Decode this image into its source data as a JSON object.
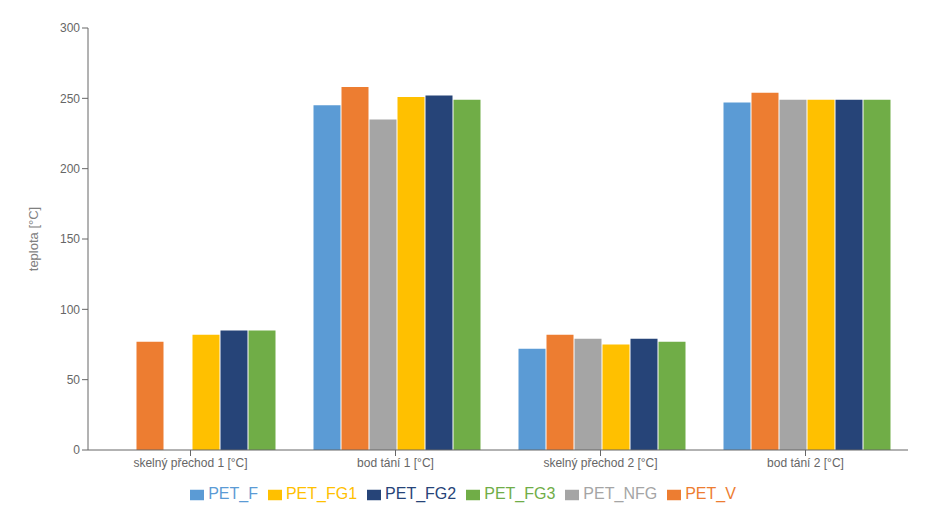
{
  "chart_data": {
    "type": "bar",
    "categories": [
      "skelný přechod 1 [°C]",
      "bod tání 1 [°C]",
      "skelný přechod 2 [°C]",
      "bod tání 2 [°C]"
    ],
    "series": [
      {
        "name": "PET_F",
        "color": "#5B9BD5",
        "values": [
          0,
          245,
          72,
          247
        ]
      },
      {
        "name": "PET_V",
        "color": "#ED7D31",
        "values": [
          77,
          258,
          82,
          254
        ]
      },
      {
        "name": "PET_NFG",
        "color": "#A5A5A5",
        "values": [
          0,
          235,
          79,
          249
        ]
      },
      {
        "name": "PET_FG1",
        "color": "#FFC000",
        "values": [
          82,
          251,
          75,
          249
        ]
      },
      {
        "name": "PET_FG2",
        "color": "#264478",
        "values": [
          85,
          252,
          79,
          249
        ]
      },
      {
        "name": "PET_FG3",
        "color": "#70AD47",
        "values": [
          85,
          249,
          77,
          249
        ]
      }
    ],
    "ylabel": "teplota [°C]",
    "ylim": [
      0,
      300
    ],
    "yticks": [
      0,
      50,
      100,
      150,
      200,
      250,
      300
    ],
    "grid": false,
    "legend": "bottom"
  }
}
